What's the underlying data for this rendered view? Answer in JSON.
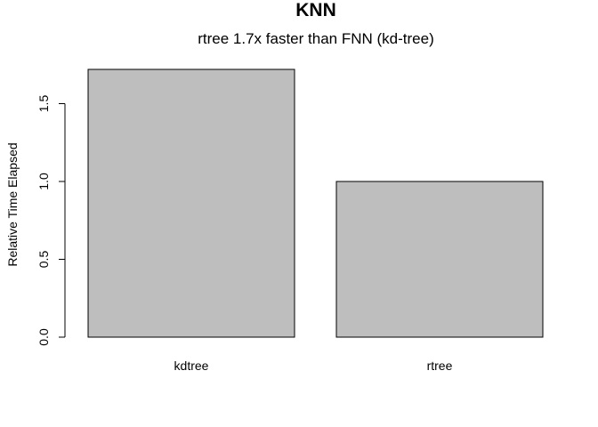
{
  "chart_data": {
    "type": "bar",
    "title": "KNN",
    "subtitle": "rtree 1.7x faster than FNN (kd-tree)",
    "xlabel": "",
    "ylabel": "Relative Time Elapsed",
    "categories": [
      "kdtree",
      "rtree"
    ],
    "values": [
      1.72,
      1.0
    ],
    "ylim": [
      0,
      1.72
    ],
    "yticks": [
      0.0,
      0.5,
      1.0,
      1.5
    ],
    "ytick_labels": [
      "0.0",
      "0.5",
      "1.0",
      "1.5"
    ],
    "grid": false,
    "legend": "none",
    "colors": {
      "bar_fill": "#bebebe",
      "bar_stroke": "#000000"
    }
  }
}
